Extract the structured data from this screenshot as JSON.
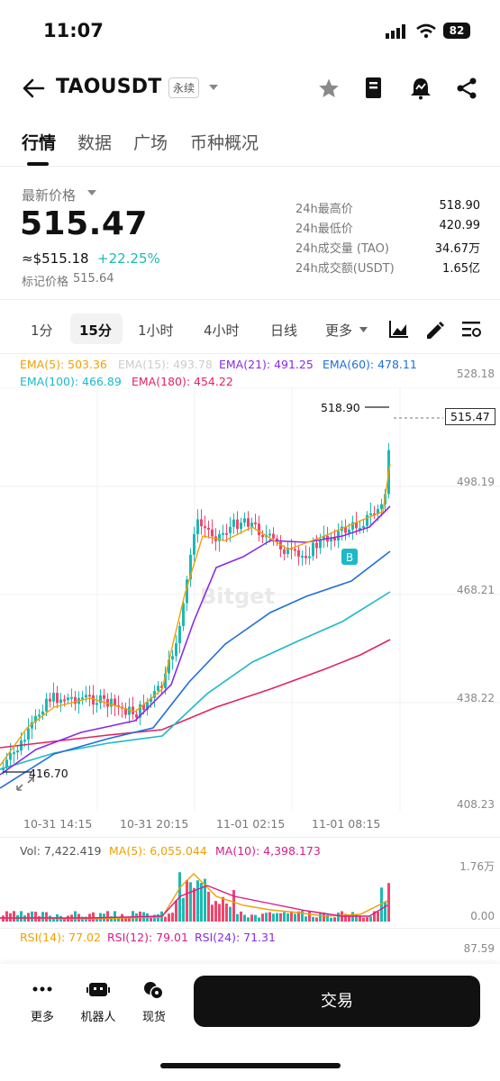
{
  "status_bar": {
    "time": "11:07",
    "battery": "82"
  },
  "header": {
    "title": "TAOUSDT",
    "badge": "永续"
  },
  "tabs": [
    {
      "label": "行情"
    },
    {
      "label": "数据"
    },
    {
      "label": "广场"
    },
    {
      "label": "币种概况"
    }
  ],
  "price": {
    "label": "最新价格",
    "last": "515.47",
    "usd": "≈$515.18",
    "change": "+22.25%",
    "mark_label": "标记价格",
    "mark": "515.64",
    "change_color": "#1cb9b3"
  },
  "stats": [
    {
      "k": "24h最高价",
      "v": "518.90"
    },
    {
      "k": "24h最低价",
      "v": "420.99"
    },
    {
      "k": "24h成交量 (TAO)",
      "v": "34.67万"
    },
    {
      "k": "24h成交额(USDT)",
      "v": "1.65亿"
    }
  ],
  "intervals": [
    {
      "label": "1分"
    },
    {
      "label": "15分"
    },
    {
      "label": "1小时"
    },
    {
      "label": "4小时"
    },
    {
      "label": "日线"
    },
    {
      "label": "更多"
    }
  ],
  "ema": [
    {
      "label": "EMA(5): 503.36",
      "color": "#f0a000"
    },
    {
      "label": "EMA(15): 493.78",
      "color": "#cccccc"
    },
    {
      "label": "EMA(21): 491.25",
      "color": "#8a2be2"
    },
    {
      "label": "EMA(60): 478.11",
      "color": "#1e6fd9"
    },
    {
      "label": "EMA(100): 466.89",
      "color": "#1cb9c9"
    },
    {
      "label": "EMA(180): 454.22",
      "color": "#e0245e"
    }
  ],
  "chart": {
    "y_axis": [
      "528.18",
      "498.19",
      "468.21",
      "438.22",
      "408.23"
    ],
    "high_label": "518.90",
    "low_label": "416.70",
    "current_label": "515.47",
    "time_axis": [
      "10-31 14:15",
      "10-31 20:15",
      "11-01 02:15",
      "11-01 08:15"
    ],
    "marker": "B",
    "watermark": "Bitget",
    "up_color": "#1cb9b3",
    "down_color": "#f0466e"
  },
  "volume": {
    "vol": "Vol: 7,422.419",
    "ma5": "MA(5): 6,055.044",
    "ma10": "MA(10): 4,398.173",
    "axis_top": "1.76万",
    "axis_bottom": "0.00"
  },
  "rsi": {
    "rsi14": "RSI(14): 77.02",
    "rsi12": "RSI(12): 79.01",
    "rsi24": "RSI(24): 71.31",
    "axis_top": "87.59"
  },
  "bottom_bar": {
    "more": "更多",
    "bot": "机器人",
    "spot": "现货",
    "trade": "交易"
  }
}
